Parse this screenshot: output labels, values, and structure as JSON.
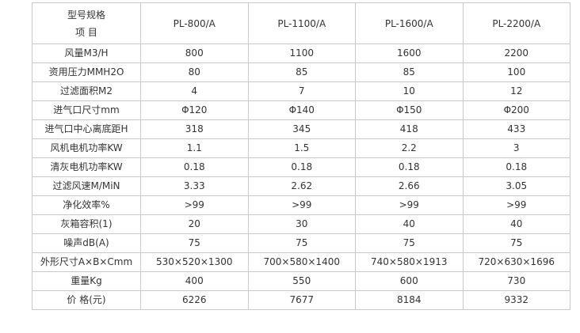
{
  "table": {
    "corner": [
      "型号规格",
      "项 目"
    ],
    "columns": [
      "PL-800/A",
      "PL-1100/A",
      "PL-1600/A",
      "PL-2200/A"
    ],
    "rows": [
      [
        "风量M3/H",
        "800",
        "1100",
        "1600",
        "2200"
      ],
      [
        "资用压力MMH2O",
        "80",
        "85",
        "85",
        "100"
      ],
      [
        "过滤面积M2",
        "4",
        "7",
        "10",
        "12"
      ],
      [
        "进气口尺寸mm",
        "Φ120",
        "Φ140",
        "Φ150",
        "Φ200"
      ],
      [
        "进气口中心离底距H",
        "318",
        "345",
        "418",
        "433"
      ],
      [
        "风机电机功率KW",
        "1.1",
        "1.5",
        "2.2",
        "3"
      ],
      [
        "清灰电机功率KW",
        "0.18",
        "0.18",
        "0.18",
        "0.18"
      ],
      [
        "过滤风速M/MiN",
        "3.33",
        "2.62",
        "2.66",
        "3.05"
      ],
      [
        "净化效率%",
        ">99",
        ">99",
        ">99",
        ">99"
      ],
      [
        "灰箱容积(1)",
        "20",
        "30",
        "40",
        "40"
      ],
      [
        "噪声dB(A)",
        "75",
        "75",
        "75",
        "75"
      ],
      [
        "外形尺寸A×B×Cmm",
        "530×520×1300",
        "700×580×1400",
        "740×580×1913",
        "720×630×1696"
      ],
      [
        "重量Kg",
        "400",
        "550",
        "600",
        "730"
      ],
      [
        "价 格(元)",
        "6226",
        "7677",
        "8184",
        "9332"
      ]
    ]
  }
}
